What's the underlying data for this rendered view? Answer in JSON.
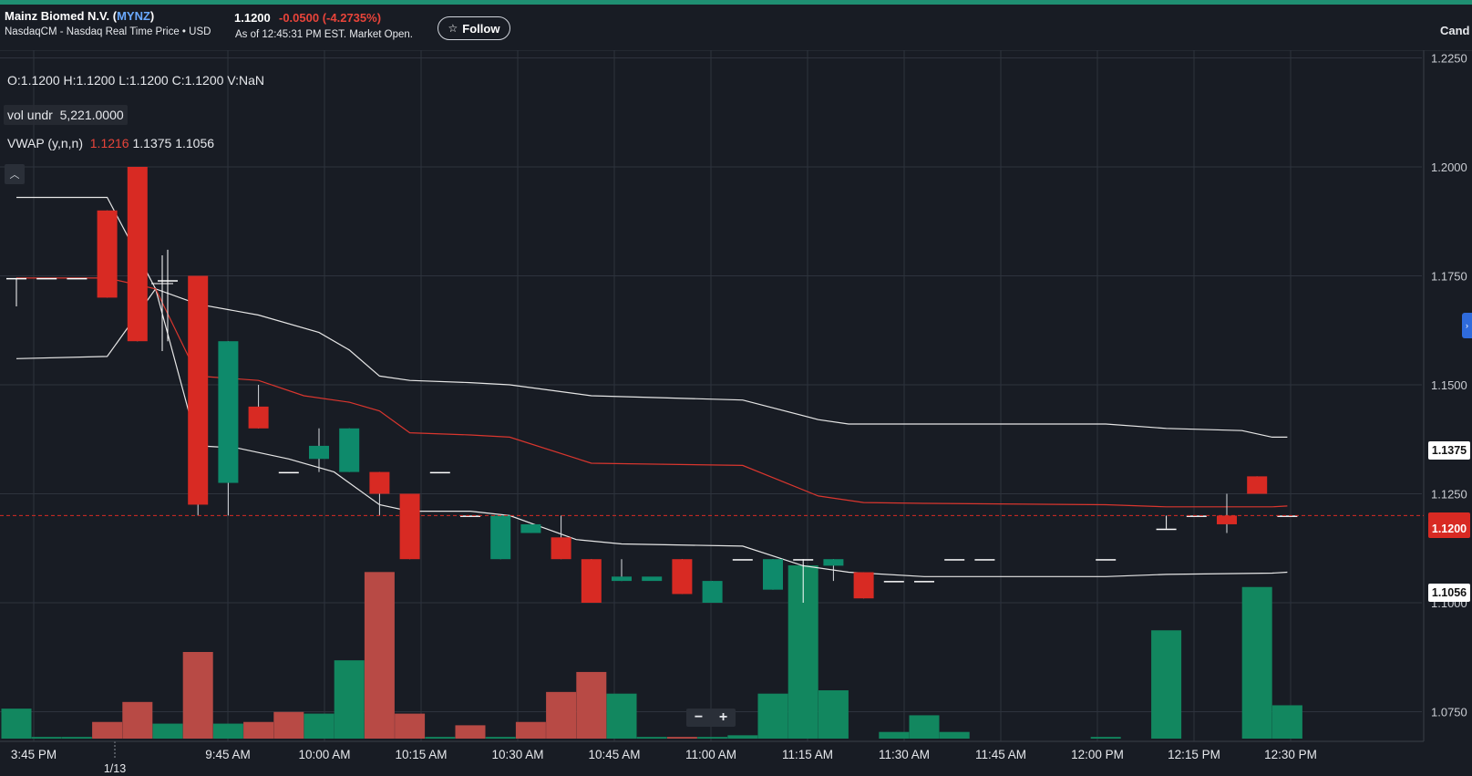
{
  "header": {
    "company": "Mainz Biomed N.V.",
    "ticker": "MYNZ",
    "exchange": "NasdaqCM - Nasdaq Real Time Price • USD",
    "price": "1.1200",
    "change": "-0.0500",
    "change_pct": "(-4.2735%)",
    "as_of": "As of 12:45:31 PM EST. Market Open.",
    "follow_label": "Follow",
    "follow_icon": "star-icon",
    "chart_type_label": "Cand"
  },
  "legend": {
    "ohlc": "O:1.1200  H:1.1200  L:1.1200  C:1.1200  V:NaN",
    "vol_label": "vol undr",
    "vol_value": "5,221.0000",
    "vwap_label": "VWAP (y,n,n)",
    "vwap_mid": "1.1216",
    "vwap_upper": "1.1375",
    "vwap_lower": "1.1056"
  },
  "controls": {
    "zoom_out": "−",
    "zoom_in": "+",
    "collapse_icon": "chevron-up-icon"
  },
  "price_tags": {
    "upper": "1.1375",
    "current": "1.1200",
    "lower": "1.1056"
  },
  "colors": {
    "up": "#0e8a6b",
    "down": "#d82a23",
    "vol_up": "#12875f",
    "vol_down": "#b84a45",
    "vwap": "#d9362e",
    "band": "#e6e6e6",
    "grid": "#2e333d"
  },
  "chart_data": {
    "type": "candlestick",
    "y_axis_ticks": [
      "1.2250",
      "1.2000",
      "1.1750",
      "1.1500",
      "1.1250",
      "1.1000",
      "1.0750"
    ],
    "ylim": [
      1.0725,
      1.2275
    ],
    "x_axis_ticks": [
      "3:45 PM",
      "9:45 AM",
      "10:00 AM",
      "10:15 AM",
      "10:30 AM",
      "10:45 AM",
      "11:00 AM",
      "11:15 AM",
      "11:30 AM",
      "11:45 AM",
      "12:00 PM",
      "12:15 PM",
      "12:30 PM"
    ],
    "date_marker": "1/13",
    "current_price": 1.12,
    "candles": [
      {
        "i": 0,
        "o": 1.1745,
        "h": 1.1745,
        "l": 1.168,
        "c": 1.1745
      },
      {
        "i": 1,
        "o": 1.1745,
        "h": 1.1745,
        "l": 1.1745,
        "c": 1.1745
      },
      {
        "i": 2,
        "o": 1.1745,
        "h": 1.1745,
        "l": 1.1745,
        "c": 1.1745
      },
      {
        "i": 3,
        "o": 1.19,
        "h": 1.19,
        "l": 1.17,
        "c": 1.17
      },
      {
        "i": 4,
        "o": 1.2,
        "h": 1.2,
        "l": 1.16,
        "c": 1.16
      },
      {
        "i": 5,
        "o": 1.174,
        "h": 1.181,
        "l": 1.16,
        "c": 1.174
      },
      {
        "i": 6,
        "o": 1.175,
        "h": 1.175,
        "l": 1.12,
        "c": 1.1225
      },
      {
        "i": 7,
        "o": 1.1275,
        "h": 1.16,
        "l": 1.12,
        "c": 1.16
      },
      {
        "i": 8,
        "o": 1.145,
        "h": 1.15,
        "l": 1.14,
        "c": 1.14
      },
      {
        "i": 9,
        "o": 1.13,
        "h": 1.13,
        "l": 1.13,
        "c": 1.13
      },
      {
        "i": 10,
        "o": 1.133,
        "h": 1.14,
        "l": 1.13,
        "c": 1.136
      },
      {
        "i": 11,
        "o": 1.13,
        "h": 1.14,
        "l": 1.13,
        "c": 1.14
      },
      {
        "i": 12,
        "o": 1.13,
        "h": 1.13,
        "l": 1.12,
        "c": 1.125
      },
      {
        "i": 13,
        "o": 1.125,
        "h": 1.125,
        "l": 1.11,
        "c": 1.11
      },
      {
        "i": 14,
        "o": 1.13,
        "h": 1.13,
        "l": 1.13,
        "c": 1.13
      },
      {
        "i": 15,
        "o": 1.12,
        "h": 1.12,
        "l": 1.12,
        "c": 1.12
      },
      {
        "i": 16,
        "o": 1.11,
        "h": 1.12,
        "l": 1.11,
        "c": 1.12
      },
      {
        "i": 17,
        "o": 1.116,
        "h": 1.118,
        "l": 1.116,
        "c": 1.118
      },
      {
        "i": 18,
        "o": 1.115,
        "h": 1.12,
        "l": 1.11,
        "c": 1.11
      },
      {
        "i": 19,
        "o": 1.11,
        "h": 1.11,
        "l": 1.1,
        "c": 1.1
      },
      {
        "i": 20,
        "o": 1.105,
        "h": 1.11,
        "l": 1.105,
        "c": 1.106
      },
      {
        "i": 21,
        "o": 1.105,
        "h": 1.105,
        "l": 1.105,
        "c": 1.106
      },
      {
        "i": 22,
        "o": 1.11,
        "h": 1.11,
        "l": 1.102,
        "c": 1.102
      },
      {
        "i": 23,
        "o": 1.1,
        "h": 1.105,
        "l": 1.1,
        "c": 1.105
      },
      {
        "i": 24,
        "o": 1.11,
        "h": 1.11,
        "l": 1.11,
        "c": 1.11
      },
      {
        "i": 25,
        "o": 1.103,
        "h": 1.11,
        "l": 1.103,
        "c": 1.11
      },
      {
        "i": 26,
        "o": 1.11,
        "h": 1.11,
        "l": 1.1,
        "c": 1.11
      },
      {
        "i": 27,
        "o": 1.1085,
        "h": 1.11,
        "l": 1.105,
        "c": 1.11
      },
      {
        "i": 28,
        "o": 1.107,
        "h": 1.107,
        "l": 1.101,
        "c": 1.101
      },
      {
        "i": 29,
        "o": 1.105,
        "h": 1.105,
        "l": 1.105,
        "c": 1.105
      },
      {
        "i": 30,
        "o": 1.105,
        "h": 1.105,
        "l": 1.105,
        "c": 1.105
      },
      {
        "i": 31,
        "o": 1.11,
        "h": 1.11,
        "l": 1.11,
        "c": 1.11
      },
      {
        "i": 32,
        "o": 1.11,
        "h": 1.11,
        "l": 1.11,
        "c": 1.11
      },
      {
        "i": 36,
        "o": 1.11,
        "h": 1.11,
        "l": 1.11,
        "c": 1.11
      },
      {
        "i": 38,
        "o": 1.117,
        "h": 1.12,
        "l": 1.117,
        "c": 1.117
      },
      {
        "i": 39,
        "o": 1.12,
        "h": 1.12,
        "l": 1.12,
        "c": 1.12
      },
      {
        "i": 40,
        "o": 1.12,
        "h": 1.125,
        "l": 1.116,
        "c": 1.118
      },
      {
        "i": 41,
        "o": 1.129,
        "h": 1.129,
        "l": 1.125,
        "c": 1.125
      },
      {
        "i": 42,
        "o": 1.12,
        "h": 1.12,
        "l": 1.12,
        "c": 1.12
      }
    ],
    "volume": [
      {
        "i": 0,
        "v": 18,
        "up": true
      },
      {
        "i": 1,
        "v": 1,
        "up": true
      },
      {
        "i": 2,
        "v": 1,
        "up": true
      },
      {
        "i": 3,
        "v": 10,
        "up": false
      },
      {
        "i": 4,
        "v": 22,
        "up": false
      },
      {
        "i": 5,
        "v": 9,
        "up": true
      },
      {
        "i": 6,
        "v": 52,
        "up": false
      },
      {
        "i": 7,
        "v": 9,
        "up": true
      },
      {
        "i": 8,
        "v": 10,
        "up": false
      },
      {
        "i": 9,
        "v": 16,
        "up": false
      },
      {
        "i": 10,
        "v": 15,
        "up": true
      },
      {
        "i": 11,
        "v": 47,
        "up": true
      },
      {
        "i": 12,
        "v": 100,
        "up": false
      },
      {
        "i": 13,
        "v": 15,
        "up": false
      },
      {
        "i": 14,
        "v": 1,
        "up": true
      },
      {
        "i": 15,
        "v": 8,
        "up": false
      },
      {
        "i": 16,
        "v": 1,
        "up": true
      },
      {
        "i": 17,
        "v": 10,
        "up": false
      },
      {
        "i": 18,
        "v": 28,
        "up": false
      },
      {
        "i": 19,
        "v": 40,
        "up": false
      },
      {
        "i": 20,
        "v": 27,
        "up": true
      },
      {
        "i": 21,
        "v": 1,
        "up": true
      },
      {
        "i": 22,
        "v": 1,
        "up": false
      },
      {
        "i": 23,
        "v": 1,
        "up": true
      },
      {
        "i": 24,
        "v": 2,
        "up": true
      },
      {
        "i": 25,
        "v": 27,
        "up": true
      },
      {
        "i": 26,
        "v": 104,
        "up": true
      },
      {
        "i": 27,
        "v": 29,
        "up": true
      },
      {
        "i": 29,
        "v": 4,
        "up": true
      },
      {
        "i": 30,
        "v": 14,
        "up": true
      },
      {
        "i": 31,
        "v": 4,
        "up": true
      },
      {
        "i": 36,
        "v": 1,
        "up": true
      },
      {
        "i": 38,
        "v": 65,
        "up": true
      },
      {
        "i": 41,
        "v": 91,
        "up": true
      },
      {
        "i": 42,
        "v": 20,
        "up": true
      }
    ],
    "vwap": [
      [
        0,
        1.1745
      ],
      [
        3,
        1.1745
      ],
      [
        4.6,
        1.172
      ],
      [
        6,
        1.152
      ],
      [
        8,
        1.151
      ],
      [
        9.5,
        1.1475
      ],
      [
        11,
        1.146
      ],
      [
        12,
        1.144
      ],
      [
        13,
        1.139
      ],
      [
        15,
        1.1385
      ],
      [
        16.3,
        1.138
      ],
      [
        19,
        1.132
      ],
      [
        24,
        1.1315
      ],
      [
        26.5,
        1.1245
      ],
      [
        28,
        1.123
      ],
      [
        30,
        1.1228
      ],
      [
        36,
        1.1225
      ],
      [
        38,
        1.122
      ],
      [
        41.5,
        1.122
      ],
      [
        42,
        1.1222
      ]
    ],
    "vwap_upper": [
      [
        0,
        1.193
      ],
      [
        3,
        1.193
      ],
      [
        4.6,
        1.172
      ],
      [
        6,
        1.1685
      ],
      [
        8,
        1.166
      ],
      [
        10,
        1.162
      ],
      [
        11,
        1.158
      ],
      [
        12,
        1.152
      ],
      [
        13,
        1.151
      ],
      [
        15,
        1.1505
      ],
      [
        16.3,
        1.15
      ],
      [
        19,
        1.1475
      ],
      [
        24,
        1.1465
      ],
      [
        26.5,
        1.142
      ],
      [
        27.5,
        1.141
      ],
      [
        36,
        1.141
      ],
      [
        38,
        1.14
      ],
      [
        40.5,
        1.1395
      ],
      [
        41.5,
        1.138
      ],
      [
        42,
        1.138
      ]
    ],
    "vwap_lower": [
      [
        0,
        1.156
      ],
      [
        3,
        1.1565
      ],
      [
        4.6,
        1.172
      ],
      [
        6,
        1.136
      ],
      [
        7.3,
        1.1355
      ],
      [
        9,
        1.133
      ],
      [
        10.5,
        1.13
      ],
      [
        12,
        1.1225
      ],
      [
        13,
        1.121
      ],
      [
        15,
        1.121
      ],
      [
        16.3,
        1.12
      ],
      [
        18.5,
        1.1145
      ],
      [
        20,
        1.1135
      ],
      [
        24,
        1.113
      ],
      [
        26,
        1.1085
      ],
      [
        27.5,
        1.107
      ],
      [
        30,
        1.106
      ],
      [
        36,
        1.106
      ],
      [
        38,
        1.1065
      ],
      [
        41.5,
        1.1068
      ],
      [
        42,
        1.107
      ]
    ]
  }
}
